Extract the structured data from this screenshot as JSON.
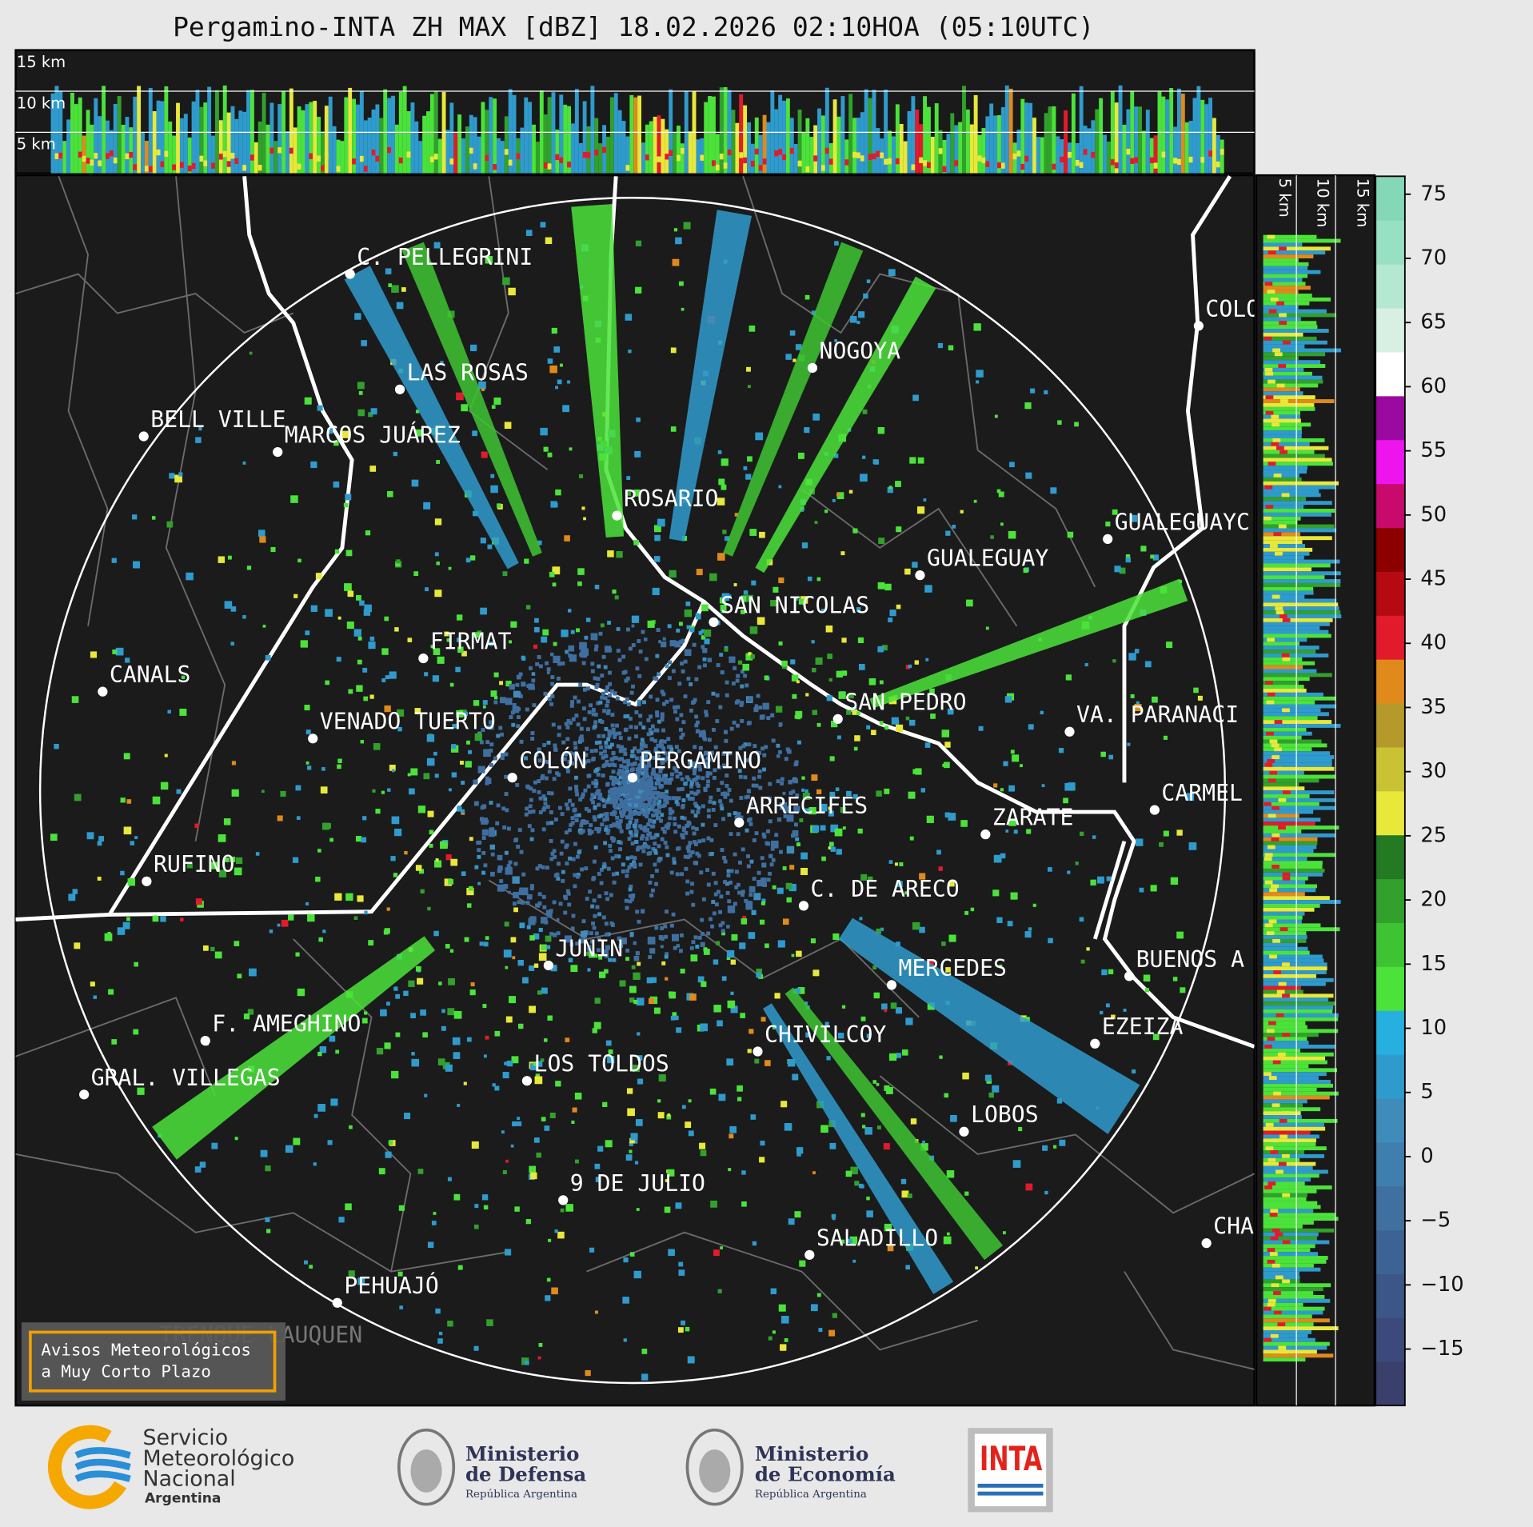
{
  "header": {
    "title": "Pergamino-INTA ZH MAX [dBZ] 18.02.2026 02:10HOA (05:10UTC)"
  },
  "profile": {
    "top_height_labels": [
      "15 km",
      "10 km",
      "5 km"
    ],
    "side_height_labels": [
      "5 km",
      "10 km",
      "15 km"
    ]
  },
  "map": {
    "cities": [
      "C. PELLEGRINI",
      "LAS ROSAS",
      "BELL VILLE",
      "MARCOS JUÁREZ",
      "NOGOYA",
      "ROSARIO",
      "GUALEGUAYC",
      "GUALEGUAY",
      "SAN NICOLAS",
      "FIRMAT",
      "CANALS",
      "SAN PEDRO",
      "VA. PARANACI",
      "VENADO TUERTO",
      "COLÓN",
      "PERGAMINO",
      "CARMEL",
      "ARRECIFES",
      "ZARATE",
      "RUFINO",
      "C. DE ARECO",
      "JUNIN",
      "BUENOS A",
      "MERCEDES",
      "F. AMEGHINO",
      "EZEIZA",
      "CHIVILCOY",
      "LOS TOLDOS",
      "GRAL. VILLEGAS",
      "LOBOS",
      "9 DE JULIO",
      "SALADILLO",
      "CHA",
      "PEHUAJÓ",
      "COLO"
    ],
    "faded_labels": [
      "TRENQUE LAUQUEN"
    ]
  },
  "colorbar": {
    "ylim": [
      -19.4,
      76.4
    ],
    "yticks": [
      75,
      70,
      65,
      60,
      55,
      50,
      45,
      40,
      35,
      30,
      25,
      20,
      15,
      10,
      5,
      0,
      {
        "value": -5,
        "label": "−5"
      },
      {
        "value": -10,
        "label": "−10"
      },
      {
        "value": -15,
        "label": "−15"
      }
    ],
    "colors": [
      "#3a3f6b",
      "#3b4a7a",
      "#3c5688",
      "#3d6394",
      "#3f70a0",
      "#3f7fae",
      "#3f8cbb",
      "#2f9bcd",
      "#26b0e0",
      "#4be33a",
      "#3ec433",
      "#31a12c",
      "#237a22",
      "#e8e83a",
      "#c9c334",
      "#b59a2b",
      "#e08a1c",
      "#e21b2c",
      "#b50a12",
      "#8c0000",
      "#c80a6c",
      "#ee14ee",
      "#9a0aa0",
      "#ffffff",
      "#d8f0e4",
      "#b4e8d0",
      "#98e0c4",
      "#84d8b8"
    ]
  },
  "warning_box": {
    "lines": [
      "Avisos Meteorológicos",
      "a Muy Corto Plazo"
    ]
  },
  "logos": {
    "smn": [
      "Servicio",
      "Meteorológico",
      "Nacional",
      "Argentina"
    ],
    "defensa": [
      "Ministerio",
      "de Defensa",
      "República Argentina"
    ],
    "economia": [
      "Ministerio",
      "de Economía",
      "República Argentina"
    ],
    "inta": "INTA"
  }
}
